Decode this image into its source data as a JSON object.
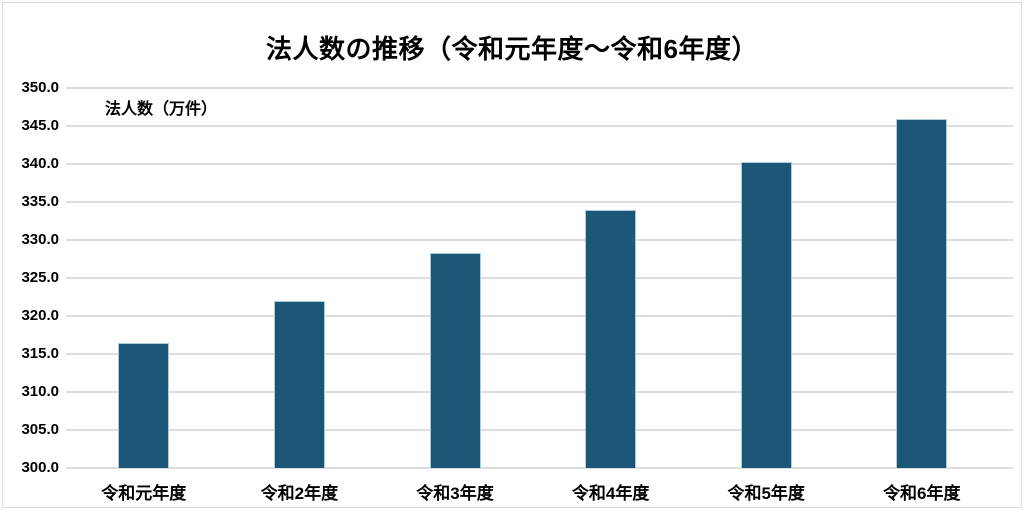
{
  "chart_data": {
    "type": "bar",
    "title": "法人数の推移（令和元年度～令和6年度）",
    "ylabel": "法人数（万件）",
    "xlabel": "",
    "categories": [
      "令和元年度",
      "令和2年度",
      "令和3年度",
      "令和4年度",
      "令和5年度",
      "令和6年度"
    ],
    "values": [
      316.4,
      322.0,
      328.3,
      334.0,
      340.2,
      345.9
    ],
    "ylim": [
      300.0,
      350.0
    ],
    "ytick_step": 5.0,
    "ytick_decimals": 1,
    "grid": "horizontal",
    "legend_position": "none",
    "colors": {
      "bar_fill": "#1b5676",
      "bar_edge": "#aecbdb",
      "gridline": "#dedede",
      "text": "#000000",
      "frame_border": "#dcdcdc",
      "background": "#ffffff"
    }
  }
}
